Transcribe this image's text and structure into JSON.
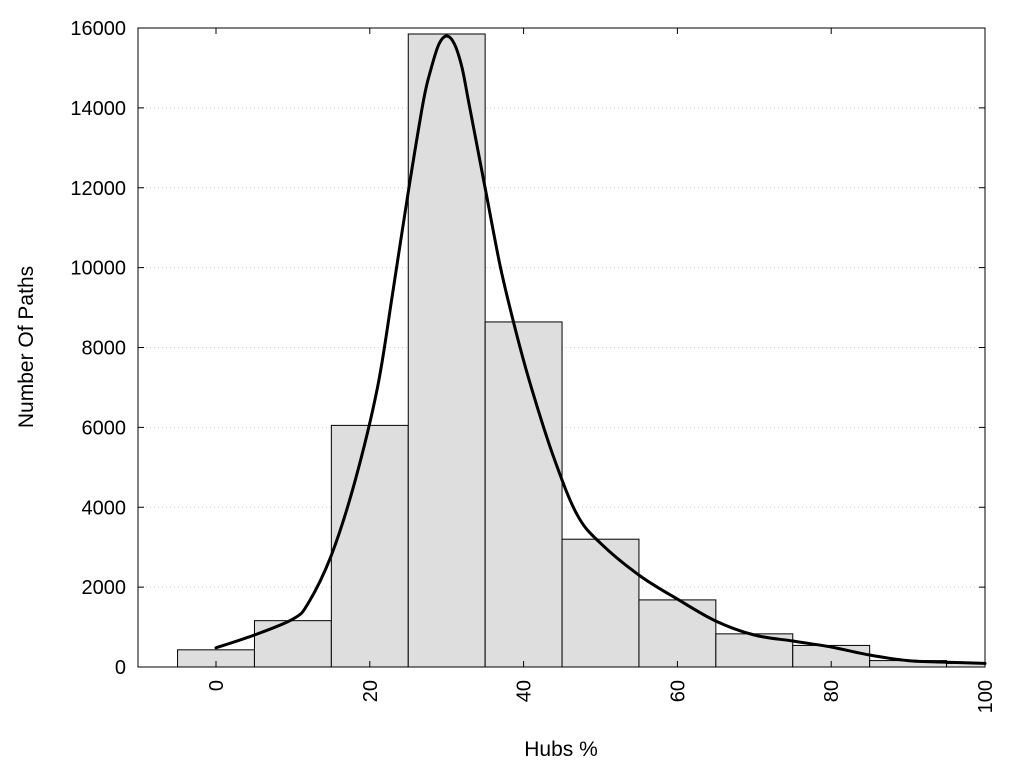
{
  "chart_data": {
    "type": "bar",
    "xlabel": "Hubs %",
    "ylabel": "Number Of Paths",
    "xlim": [
      -10,
      100
    ],
    "ylim": [
      0,
      16000
    ],
    "xticks": [
      "0",
      "20",
      "40",
      "60",
      "80",
      "100"
    ],
    "yticks": [
      "0",
      "2000",
      "4000",
      "6000",
      "8000",
      "10000",
      "12000",
      "14000",
      "16000"
    ],
    "grid": "horizontal dotted",
    "bin_width": 10,
    "series": [
      {
        "kind": "bars",
        "x": [
          0,
          10,
          20,
          30,
          40,
          50,
          60,
          70,
          80,
          90,
          100
        ],
        "values": [
          430,
          1160,
          6050,
          15850,
          8640,
          3200,
          1680,
          830,
          540,
          160,
          90
        ],
        "color": "#dedede"
      },
      {
        "kind": "line",
        "color": "#000000",
        "points": [
          [
            0,
            480
          ],
          [
            5,
            800
          ],
          [
            10,
            1200
          ],
          [
            12,
            1600
          ],
          [
            15,
            2800
          ],
          [
            18,
            4600
          ],
          [
            21,
            7000
          ],
          [
            23,
            9400
          ],
          [
            25,
            11900
          ],
          [
            27,
            14200
          ],
          [
            28,
            15000
          ],
          [
            29,
            15600
          ],
          [
            30,
            15800
          ],
          [
            31,
            15600
          ],
          [
            32,
            15000
          ],
          [
            33,
            14000
          ],
          [
            35,
            12000
          ],
          [
            37,
            10000
          ],
          [
            39,
            8400
          ],
          [
            41,
            7000
          ],
          [
            44,
            5200
          ],
          [
            47,
            3800
          ],
          [
            50,
            3100
          ],
          [
            55,
            2300
          ],
          [
            60,
            1700
          ],
          [
            65,
            1150
          ],
          [
            70,
            800
          ],
          [
            75,
            650
          ],
          [
            80,
            500
          ],
          [
            85,
            300
          ],
          [
            90,
            160
          ],
          [
            95,
            120
          ],
          [
            100,
            90
          ]
        ]
      }
    ]
  }
}
